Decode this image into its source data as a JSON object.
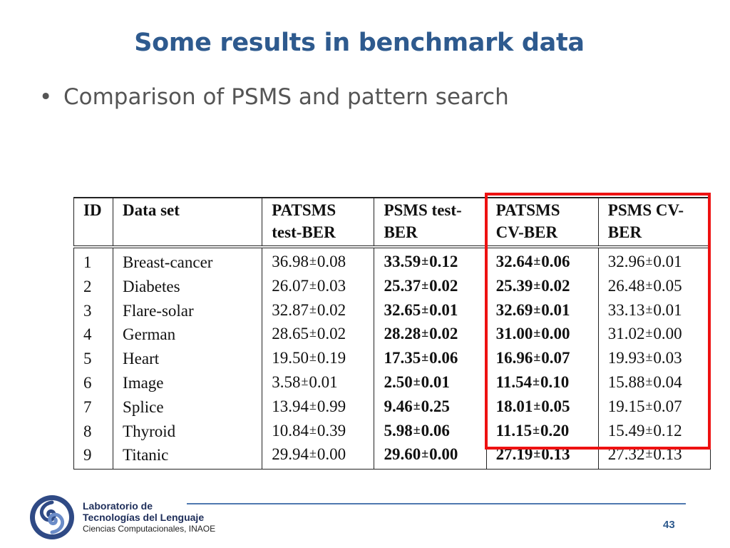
{
  "slide": {
    "title": "Some results in benchmark data",
    "bullet": "Comparison of PSMS and pattern search",
    "page_number": "43"
  },
  "table": {
    "headers": [
      {
        "line1": "ID",
        "line2": ""
      },
      {
        "line1": "Data set",
        "line2": ""
      },
      {
        "line1": "PATSMS",
        "line2": "test-BER"
      },
      {
        "line1": "PSMS  test-",
        "line2": "BER"
      },
      {
        "line1": "PATSMS",
        "line2": "CV-BER"
      },
      {
        "line1": "PSMS  CV-",
        "line2": "BER"
      }
    ],
    "pm_symbol": "±",
    "rows": [
      {
        "id": "1",
        "name": "Breast-cancer",
        "vals": [
          [
            "36.98",
            "0.08"
          ],
          [
            "33.59",
            "0.12"
          ],
          [
            "32.64",
            "0.06"
          ],
          [
            "32.96",
            "0.01"
          ]
        ]
      },
      {
        "id": "2",
        "name": "Diabetes",
        "vals": [
          [
            "26.07",
            "0.03"
          ],
          [
            "25.37",
            "0.02"
          ],
          [
            "25.39",
            "0.02"
          ],
          [
            "26.48",
            "0.05"
          ]
        ]
      },
      {
        "id": "3",
        "name": "Flare-solar",
        "vals": [
          [
            "32.87",
            "0.02"
          ],
          [
            "32.65",
            "0.01"
          ],
          [
            "32.69",
            "0.01"
          ],
          [
            "33.13",
            "0.01"
          ]
        ]
      },
      {
        "id": "4",
        "name": "German",
        "vals": [
          [
            "28.65",
            "0.02"
          ],
          [
            "28.28",
            "0.02"
          ],
          [
            "31.00",
            "0.00"
          ],
          [
            "31.02",
            "0.00"
          ]
        ]
      },
      {
        "id": "5",
        "name": "Heart",
        "vals": [
          [
            "19.50",
            "0.19"
          ],
          [
            "17.35",
            "0.06"
          ],
          [
            "16.96",
            "0.07"
          ],
          [
            "19.93",
            "0.03"
          ]
        ]
      },
      {
        "id": "6",
        "name": "Image",
        "vals": [
          [
            "3.58",
            "0.01"
          ],
          [
            "2.50",
            "0.01"
          ],
          [
            "11.54",
            "0.10"
          ],
          [
            "15.88",
            "0.04"
          ]
        ]
      },
      {
        "id": "7",
        "name": "Splice",
        "vals": [
          [
            "13.94",
            "0.99"
          ],
          [
            "9.46",
            "0.25"
          ],
          [
            "18.01",
            "0.05"
          ],
          [
            "19.15",
            "0.07"
          ]
        ]
      },
      {
        "id": "8",
        "name": "Thyroid",
        "vals": [
          [
            "10.84",
            "0.39"
          ],
          [
            "5.98",
            "0.06"
          ],
          [
            "11.15",
            "0.20"
          ],
          [
            "15.49",
            "0.12"
          ]
        ]
      },
      {
        "id": "9",
        "name": "Titanic",
        "vals": [
          [
            "29.94",
            "0.00"
          ],
          [
            "29.60",
            "0.00"
          ],
          [
            "27.19",
            "0.13"
          ],
          [
            "27.32",
            "0.13"
          ]
        ]
      }
    ],
    "bold_columns": [
      1,
      2
    ],
    "highlight_color": "#ee1111"
  },
  "footer": {
    "line1": "Laboratorio de",
    "line2": "Tecnologías del Lenguaje",
    "line3": "Ciencias Computacionales, INAOE",
    "logo_icon": "inaoe-swirl-logo-icon"
  },
  "colors": {
    "title": "#2e5a8e",
    "text": "#555555",
    "accent_line": "#4f79b0"
  }
}
